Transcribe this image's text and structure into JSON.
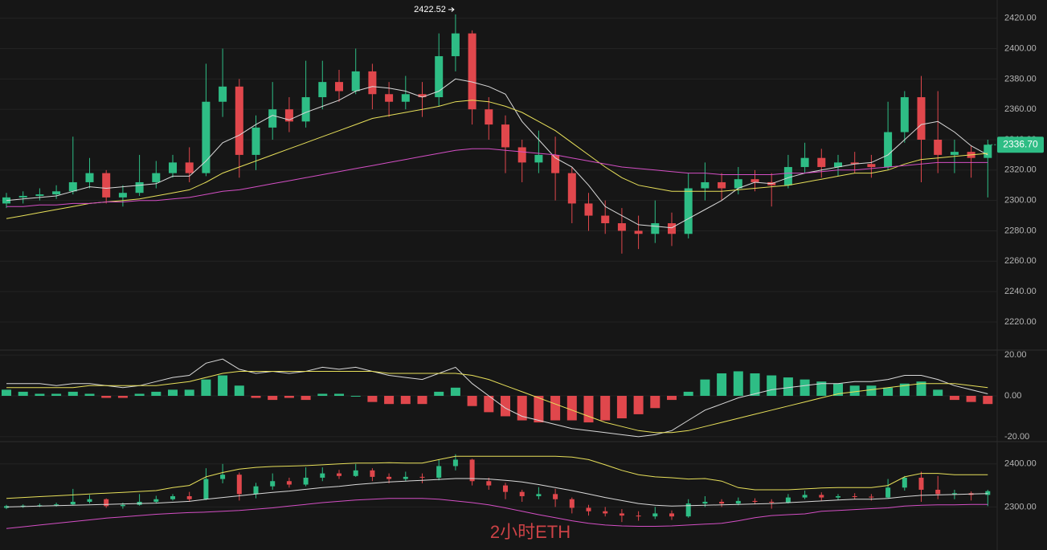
{
  "chart_data": [
    {
      "type": "candlestick",
      "up_color": "#2ebd85",
      "down_color": "#e0474c",
      "grid": true,
      "ylim": [
        2202,
        2432
      ],
      "yticks": [
        {
          "value": 2220,
          "label": "2220.00"
        },
        {
          "value": 2240,
          "label": "2240.00"
        },
        {
          "value": 2260,
          "label": "2260.00"
        },
        {
          "value": 2280,
          "label": "2280.00"
        },
        {
          "value": 2300,
          "label": "2300.00"
        },
        {
          "value": 2320,
          "label": "2320.00"
        },
        {
          "value": 2340,
          "label": "2340.00"
        },
        {
          "value": 2360,
          "label": "2360.00"
        },
        {
          "value": 2380,
          "label": "2380.00"
        },
        {
          "value": 2400,
          "label": "2400.00"
        },
        {
          "value": 2420,
          "label": "2420.00"
        }
      ],
      "open": [
        2298,
        2302,
        2303,
        2304,
        2306,
        2312,
        2318,
        2302,
        2305,
        2312,
        2318,
        2325,
        2318,
        2365,
        2375,
        2330,
        2348,
        2360,
        2352,
        2368,
        2378,
        2372,
        2385,
        2370,
        2365,
        2370,
        2368,
        2395,
        2410,
        2360,
        2350,
        2335,
        2325,
        2330,
        2318,
        2298,
        2290,
        2285,
        2280,
        2278,
        2285,
        2278,
        2308,
        2312,
        2308,
        2314,
        2312,
        2310,
        2322,
        2328,
        2322,
        2325,
        2324,
        2322,
        2345,
        2368,
        2340,
        2330,
        2332,
        2328
      ],
      "high": [
        2305,
        2306,
        2308,
        2310,
        2342,
        2328,
        2320,
        2310,
        2330,
        2326,
        2330,
        2335,
        2390,
        2400,
        2380,
        2356,
        2378,
        2368,
        2392,
        2392,
        2386,
        2400,
        2390,
        2378,
        2382,
        2378,
        2410,
        2422.52,
        2412,
        2368,
        2356,
        2340,
        2346,
        2342,
        2322,
        2305,
        2300,
        2295,
        2290,
        2300,
        2292,
        2318,
        2325,
        2318,
        2322,
        2320,
        2318,
        2330,
        2338,
        2334,
        2330,
        2332,
        2330,
        2365,
        2372,
        2382,
        2372,
        2340,
        2336,
        2340
      ],
      "low": [
        2295,
        2298,
        2300,
        2301,
        2304,
        2308,
        2298,
        2296,
        2303,
        2308,
        2315,
        2312,
        2316,
        2355,
        2315,
        2320,
        2340,
        2345,
        2348,
        2360,
        2365,
        2370,
        2360,
        2355,
        2360,
        2355,
        2362,
        2385,
        2350,
        2340,
        2318,
        2312,
        2318,
        2300,
        2285,
        2280,
        2278,
        2265,
        2268,
        2272,
        2270,
        2275,
        2300,
        2300,
        2304,
        2306,
        2296,
        2308,
        2318,
        2315,
        2316,
        2318,
        2315,
        2320,
        2338,
        2312,
        2318,
        2318,
        2315,
        2302
      ],
      "close": [
        2302,
        2303,
        2304,
        2306,
        2312,
        2318,
        2302,
        2305,
        2312,
        2318,
        2325,
        2318,
        2365,
        2375,
        2330,
        2348,
        2360,
        2352,
        2368,
        2378,
        2372,
        2385,
        2370,
        2365,
        2370,
        2368,
        2395,
        2410,
        2360,
        2350,
        2335,
        2325,
        2330,
        2318,
        2298,
        2290,
        2285,
        2280,
        2278,
        2285,
        2278,
        2308,
        2312,
        2308,
        2314,
        2312,
        2310,
        2322,
        2328,
        2322,
        2325,
        2324,
        2322,
        2345,
        2368,
        2340,
        2330,
        2332,
        2328,
        2336.7
      ],
      "series": [
        {
          "color": "#d9d9d9",
          "values": [
            2300,
            2301,
            2302,
            2303,
            2306,
            2309,
            2308,
            2309,
            2310,
            2311,
            2316,
            2316,
            2326,
            2338,
            2343,
            2350,
            2356,
            2353,
            2358,
            2362,
            2366,
            2372,
            2375,
            2374,
            2372,
            2368,
            2372,
            2380,
            2378,
            2375,
            2370,
            2352,
            2340,
            2328,
            2322,
            2310,
            2296,
            2290,
            2284,
            2283,
            2282,
            2288,
            2294,
            2300,
            2308,
            2312,
            2311,
            2315,
            2318,
            2320,
            2322,
            2324,
            2325,
            2330,
            2340,
            2350,
            2352,
            2345,
            2336,
            2330
          ]
        },
        {
          "color": "#e8e05a",
          "values": [
            2288,
            2290,
            2292,
            2294,
            2296,
            2298,
            2299,
            2300,
            2301,
            2303,
            2305,
            2307,
            2312,
            2318,
            2322,
            2326,
            2330,
            2334,
            2338,
            2342,
            2346,
            2350,
            2354,
            2356,
            2358,
            2360,
            2362,
            2365,
            2366,
            2365,
            2362,
            2358,
            2352,
            2346,
            2338,
            2330,
            2322,
            2315,
            2310,
            2308,
            2306,
            2306,
            2306,
            2306,
            2307,
            2308,
            2309,
            2310,
            2312,
            2314,
            2316,
            2318,
            2318,
            2320,
            2324,
            2327,
            2328,
            2329,
            2330,
            2331
          ]
        },
        {
          "color": "#d44fc5",
          "values": [
            2296,
            2296,
            2297,
            2297,
            2298,
            2298,
            2299,
            2299,
            2300,
            2300,
            2301,
            2302,
            2304,
            2306,
            2307,
            2309,
            2311,
            2313,
            2315,
            2317,
            2319,
            2321,
            2323,
            2325,
            2327,
            2329,
            2331,
            2333,
            2334,
            2334,
            2333,
            2332,
            2331,
            2330,
            2328,
            2326,
            2324,
            2322,
            2321,
            2320,
            2319,
            2318,
            2318,
            2317,
            2317,
            2317,
            2317,
            2318,
            2318,
            2319,
            2320,
            2320,
            2321,
            2322,
            2323,
            2324,
            2325,
            2325,
            2325,
            2325
          ]
        }
      ],
      "last_price": {
        "value": 2336.7,
        "label": "2336.70"
      }
    },
    {
      "type": "macd",
      "up_color": "#2ebd85",
      "down_color": "#e0474c",
      "ylim": [
        -22,
        22
      ],
      "yticks": [
        {
          "value": -20,
          "label": "-20.00"
        },
        {
          "value": 0,
          "label": "0.00"
        },
        {
          "value": 20,
          "label": "20.00"
        }
      ],
      "values": [
        3,
        2,
        1,
        1,
        2,
        1,
        -1,
        -1,
        1,
        2,
        3,
        3,
        8,
        10,
        5,
        -1,
        -2,
        -1,
        -2,
        1,
        1,
        0,
        -3,
        -4,
        -4,
        -4,
        2,
        4,
        -5,
        -8,
        -10,
        -12,
        -13,
        -12,
        -12,
        -13,
        -12,
        -11,
        -9,
        -6,
        -2,
        2,
        8,
        11,
        12,
        11,
        10,
        9,
        8,
        7,
        6,
        5,
        5,
        4,
        6,
        7,
        3,
        -2,
        -3,
        -4
      ],
      "series": [
        {
          "color": "#d9d9d9",
          "values": [
            6,
            6,
            6,
            5,
            6,
            6,
            5,
            4,
            5,
            7,
            9,
            10,
            16,
            18,
            13,
            11,
            12,
            11,
            12,
            14,
            13,
            14,
            12,
            10,
            9,
            8,
            11,
            14,
            6,
            0,
            -6,
            -10,
            -12,
            -14,
            -16,
            -17,
            -18,
            -19,
            -20,
            -19,
            -17,
            -12,
            -7,
            -4,
            -1,
            1,
            3,
            4,
            5,
            6,
            6,
            7,
            7,
            8,
            10,
            10,
            8,
            5,
            3,
            1
          ]
        },
        {
          "color": "#e8e05a",
          "values": [
            4,
            4,
            4,
            4,
            4,
            5,
            5,
            5,
            5,
            5,
            6,
            7,
            9,
            11,
            12,
            12,
            12,
            12,
            12,
            12,
            12,
            12,
            12,
            11,
            11,
            11,
            11,
            11,
            10,
            8,
            5,
            2,
            -1,
            -4,
            -7,
            -10,
            -13,
            -15,
            -17,
            -18,
            -18,
            -17,
            -15,
            -13,
            -11,
            -9,
            -7,
            -5,
            -3,
            -1,
            1,
            2,
            3,
            4,
            5,
            6,
            6,
            6,
            5,
            4
          ]
        }
      ]
    },
    {
      "type": "bollinger",
      "ylim": [
        2200,
        2450
      ],
      "yticks": [
        {
          "value": 2300,
          "label": "2300.00"
        },
        {
          "value": 2400,
          "label": "2400.00"
        }
      ],
      "series": [
        {
          "color": "#e8e05a",
          "values": [
            2320,
            2322,
            2324,
            2326,
            2328,
            2330,
            2332,
            2334,
            2336,
            2338,
            2345,
            2350,
            2370,
            2380,
            2388,
            2392,
            2394,
            2395,
            2396,
            2398,
            2400,
            2402,
            2402,
            2403,
            2402,
            2402,
            2410,
            2418,
            2418,
            2418,
            2418,
            2418,
            2418,
            2418,
            2416,
            2410,
            2398,
            2385,
            2375,
            2370,
            2368,
            2365,
            2366,
            2360,
            2345,
            2340,
            2340,
            2340,
            2342,
            2344,
            2345,
            2345,
            2345,
            2350,
            2370,
            2378,
            2378,
            2375,
            2375,
            2375
          ]
        },
        {
          "color": "#d9d9d9",
          "values": [
            2300,
            2301,
            2302,
            2303,
            2304,
            2305,
            2306,
            2307,
            2308,
            2309,
            2311,
            2313,
            2318,
            2322,
            2326,
            2330,
            2334,
            2337,
            2341,
            2345,
            2348,
            2352,
            2355,
            2358,
            2360,
            2362,
            2364,
            2366,
            2366,
            2365,
            2362,
            2358,
            2352,
            2345,
            2338,
            2330,
            2322,
            2315,
            2308,
            2304,
            2302,
            2303,
            2304,
            2305,
            2306,
            2307,
            2308,
            2310,
            2312,
            2314,
            2316,
            2318,
            2318,
            2320,
            2324,
            2327,
            2328,
            2329,
            2330,
            2331
          ]
        },
        {
          "color": "#d44fc5",
          "values": [
            2250,
            2254,
            2258,
            2262,
            2266,
            2270,
            2274,
            2277,
            2280,
            2283,
            2285,
            2287,
            2288,
            2290,
            2292,
            2295,
            2298,
            2302,
            2306,
            2310,
            2313,
            2316,
            2318,
            2320,
            2320,
            2320,
            2318,
            2314,
            2310,
            2305,
            2298,
            2290,
            2282,
            2275,
            2268,
            2262,
            2258,
            2256,
            2255,
            2255,
            2256,
            2258,
            2260,
            2262,
            2268,
            2275,
            2280,
            2282,
            2284,
            2290,
            2292,
            2294,
            2296,
            2298,
            2302,
            2304,
            2305,
            2305,
            2306,
            2306
          ]
        }
      ]
    }
  ],
  "watermark": "2小时ETH"
}
